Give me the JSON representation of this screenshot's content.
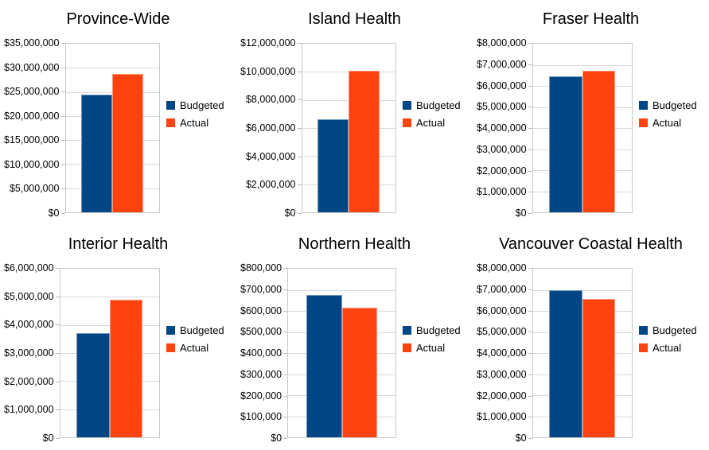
{
  "grid": {
    "columns": 3,
    "rows": 2
  },
  "series_colors": {
    "budgeted": "#004586",
    "actual": "#FF420E"
  },
  "chart_data": [
    {
      "type": "bar",
      "title": "Province-Wide",
      "categories": [
        ""
      ],
      "series": [
        {
          "name": "Budgeted",
          "color": "#004586",
          "values": [
            24400000
          ]
        },
        {
          "name": "Actual",
          "color": "#FF420E",
          "values": [
            28700000
          ]
        }
      ],
      "ylim": [
        0,
        35000000
      ],
      "ytick_step": 5000000,
      "ytick_labels": [
        "$35,000,000",
        "$30,000,000",
        "$25,000,000",
        "$20,000,000",
        "$15,000,000",
        "$10,000,000",
        "$5,000,000",
        "$0"
      ],
      "grid": true,
      "legend_position": "right"
    },
    {
      "type": "bar",
      "title": "Island Health",
      "categories": [
        ""
      ],
      "series": [
        {
          "name": "Budgeted",
          "color": "#004586",
          "values": [
            6600000
          ]
        },
        {
          "name": "Actual",
          "color": "#FF420E",
          "values": [
            10050000
          ]
        }
      ],
      "ylim": [
        0,
        12000000
      ],
      "ytick_step": 2000000,
      "ytick_labels": [
        "$12,000,000",
        "$10,000,000",
        "$8,000,000",
        "$6,000,000",
        "$4,000,000",
        "$2,000,000",
        "$0"
      ],
      "grid": true,
      "legend_position": "right"
    },
    {
      "type": "bar",
      "title": "Fraser Health",
      "categories": [
        ""
      ],
      "series": [
        {
          "name": "Budgeted",
          "color": "#004586",
          "values": [
            6450000
          ]
        },
        {
          "name": "Actual",
          "color": "#FF420E",
          "values": [
            6700000
          ]
        }
      ],
      "ylim": [
        0,
        8000000
      ],
      "ytick_step": 1000000,
      "ytick_labels": [
        "$8,000,000",
        "$7,000,000",
        "$6,000,000",
        "$5,000,000",
        "$4,000,000",
        "$3,000,000",
        "$2,000,000",
        "$1,000,000",
        "$0"
      ],
      "grid": true,
      "legend_position": "right"
    },
    {
      "type": "bar",
      "title": "Interior Health",
      "categories": [
        ""
      ],
      "series": [
        {
          "name": "Budgeted",
          "color": "#004586",
          "values": [
            3700000
          ]
        },
        {
          "name": "Actual",
          "color": "#FF420E",
          "values": [
            4900000
          ]
        }
      ],
      "ylim": [
        0,
        6000000
      ],
      "ytick_step": 1000000,
      "ytick_labels": [
        "$6,000,000",
        "$5,000,000",
        "$4,000,000",
        "$3,000,000",
        "$2,000,000",
        "$1,000,000",
        "$0"
      ],
      "grid": true,
      "legend_position": "right"
    },
    {
      "type": "bar",
      "title": "Northern Health",
      "categories": [
        ""
      ],
      "series": [
        {
          "name": "Budgeted",
          "color": "#004586",
          "values": [
            675000
          ]
        },
        {
          "name": "Actual",
          "color": "#FF420E",
          "values": [
            615000
          ]
        }
      ],
      "ylim": [
        0,
        800000
      ],
      "ytick_step": 100000,
      "ytick_labels": [
        "$800,000",
        "$700,000",
        "$600,000",
        "$500,000",
        "$400,000",
        "$300,000",
        "$200,000",
        "$100,000",
        "$0"
      ],
      "grid": true,
      "legend_position": "right"
    },
    {
      "type": "bar",
      "title": "Vancouver Coastal Health",
      "categories": [
        ""
      ],
      "series": [
        {
          "name": "Budgeted",
          "color": "#004586",
          "values": [
            7000000
          ]
        },
        {
          "name": "Actual",
          "color": "#FF420E",
          "values": [
            6550000
          ]
        }
      ],
      "ylim": [
        0,
        8000000
      ],
      "ytick_step": 1000000,
      "ytick_labels": [
        "$8,000,000",
        "$7,000,000",
        "$6,000,000",
        "$5,000,000",
        "$4,000,000",
        "$3,000,000",
        "$2,000,000",
        "$1,000,000",
        "$0"
      ],
      "grid": true,
      "legend_position": "right"
    }
  ]
}
